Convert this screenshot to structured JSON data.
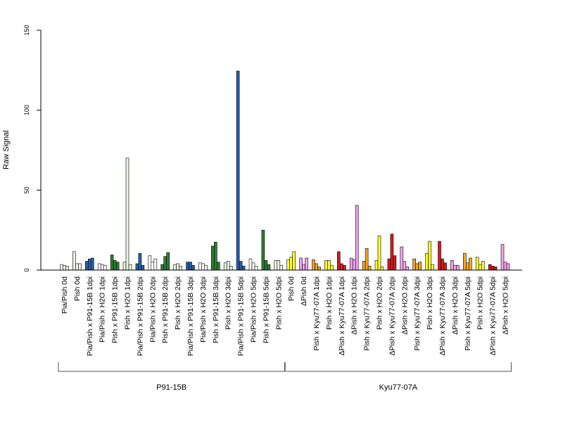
{
  "chart_data": {
    "type": "bar",
    "ylabel": "Raw Signal",
    "xlabel": "",
    "ylim": [
      0,
      150
    ],
    "yticks": [
      0,
      50,
      100,
      150
    ],
    "colors": {
      "white": "#ffffff",
      "light_green": "#e8f5e0",
      "blue": "#2a5fa8",
      "green": "#2e7d32",
      "yellow": "#ffff33",
      "red": "#d7191c",
      "orange": "#f5a623",
      "pink": "#f4a0f0"
    },
    "groups": [
      {
        "label": "P91-15B",
        "from": 0,
        "to": 17
      },
      {
        "label": "Kyu77-07A",
        "from": 18,
        "to": 35
      }
    ],
    "categories": [
      {
        "label": "Pia/Pish 0d",
        "color": "white",
        "values": [
          3.5,
          3.0,
          2.5
        ]
      },
      {
        "label": "Pish 0d",
        "color": "light_green",
        "values": [
          11.5,
          4.0,
          4.0
        ]
      },
      {
        "label": "Pia/Pish x P91-15B 1dpi",
        "color": "blue",
        "values": [
          5.5,
          7.0,
          7.5
        ]
      },
      {
        "label": "Pia/Pish x H2O 1dpi",
        "color": "white",
        "values": [
          4.0,
          3.5,
          3.0
        ]
      },
      {
        "label": "Pish x P91-15B 1dpi",
        "color": "green",
        "values": [
          9.5,
          6.0,
          5.0
        ]
      },
      {
        "label": "Pish x H2O 1dpi",
        "color": "light_green",
        "values": [
          5.0,
          70.0,
          3.5
        ]
      },
      {
        "label": "Pia/Pish x P91-15B 2dpi",
        "color": "blue",
        "values": [
          4.0,
          10.5,
          3.0
        ]
      },
      {
        "label": "Pia/Pish x H2O 2dpi",
        "color": "white",
        "values": [
          9.0,
          5.0,
          7.0
        ]
      },
      {
        "label": "Pish x P91-15B 2dpi",
        "color": "green",
        "values": [
          3.5,
          8.5,
          11.0
        ]
      },
      {
        "label": "Pish x H2O 2dpi",
        "color": "light_green",
        "values": [
          3.5,
          4.0,
          2.5
        ]
      },
      {
        "label": "Pia/Pish x P91-15B 3dpi",
        "color": "blue",
        "values": [
          5.0,
          5.0,
          3.0
        ]
      },
      {
        "label": "Pia/Pish x H2O 3dpi",
        "color": "white",
        "values": [
          4.5,
          4.0,
          3.0
        ]
      },
      {
        "label": "Pish x P91-15B 3dpi",
        "color": "green",
        "values": [
          15.0,
          17.5,
          5.0
        ]
      },
      {
        "label": "Pish x H2O 3dpi",
        "color": "light_green",
        "values": [
          4.5,
          5.5,
          2.5
        ]
      },
      {
        "label": "Pia/Pish x P91-15B 5dpi",
        "color": "blue",
        "values": [
          124.5,
          5.5,
          2.5
        ]
      },
      {
        "label": "Pia/Pish x H2O 5dpi",
        "color": "white",
        "values": [
          7.0,
          4.5,
          2.5
        ]
      },
      {
        "label": "Pish x P91-15B 5dpi",
        "color": "green",
        "values": [
          25.0,
          6.0,
          3.5
        ]
      },
      {
        "label": "Pish x H2O 5dpi",
        "color": "light_green",
        "values": [
          6.0,
          6.0,
          3.0
        ]
      },
      {
        "label": "Pish 0d",
        "color": "yellow",
        "values": [
          6.5,
          8.0,
          11.5
        ]
      },
      {
        "label": "ΔPish 0d",
        "color": "pink",
        "values": [
          7.5,
          3.5,
          7.5
        ]
      },
      {
        "label": "Pish x Kyu77-07A 1dpi",
        "color": "orange",
        "values": [
          6.5,
          4.0,
          2.0
        ]
      },
      {
        "label": "Pish x H2O 1dpi",
        "color": "yellow",
        "values": [
          6.0,
          6.0,
          3.0
        ]
      },
      {
        "label": "ΔPish x Kyu77-07A 1dpi",
        "color": "red",
        "values": [
          11.5,
          4.0,
          3.0
        ]
      },
      {
        "label": "ΔPish x H2O 1dpi",
        "color": "pink",
        "values": [
          7.5,
          6.5,
          40.5
        ]
      },
      {
        "label": "Pish x Kyu77-07A 2dpi",
        "color": "orange",
        "values": [
          5.5,
          13.5,
          2.5
        ]
      },
      {
        "label": "Pish x H2O 2dpi",
        "color": "yellow",
        "values": [
          6.0,
          21.5,
          2.0
        ]
      },
      {
        "label": "ΔPish x Kyu77-07A 2dpi",
        "color": "red",
        "values": [
          7.0,
          22.5,
          9.0
        ]
      },
      {
        "label": "ΔPish x H2O 2dpi",
        "color": "pink",
        "values": [
          14.5,
          5.5,
          2.0
        ]
      },
      {
        "label": "Pish x Kyu77-07A 3dpi",
        "color": "orange",
        "values": [
          7.0,
          4.0,
          5.0
        ]
      },
      {
        "label": "Pish x H2O 3dpi",
        "color": "yellow",
        "values": [
          10.5,
          18.0,
          3.5
        ]
      },
      {
        "label": "ΔPish x Kyu77-07A 3dpi",
        "color": "red",
        "values": [
          18.0,
          7.0,
          4.5
        ]
      },
      {
        "label": "ΔPish x H2O 3dpi",
        "color": "pink",
        "values": [
          6.0,
          3.0,
          3.0
        ]
      },
      {
        "label": "Pish x Kyu77-07A 5dpi",
        "color": "orange",
        "values": [
          10.5,
          4.5,
          7.5
        ]
      },
      {
        "label": "Pish x H2O 5dpi",
        "color": "yellow",
        "values": [
          8.0,
          3.5,
          5.5
        ]
      },
      {
        "label": "ΔPish x Kyu77-07A 5dpi",
        "color": "red",
        "values": [
          3.5,
          2.5,
          2.0
        ]
      },
      {
        "label": "ΔPish x H2O 5dpi",
        "color": "pink",
        "values": [
          16.0,
          5.0,
          4.0
        ]
      }
    ]
  }
}
